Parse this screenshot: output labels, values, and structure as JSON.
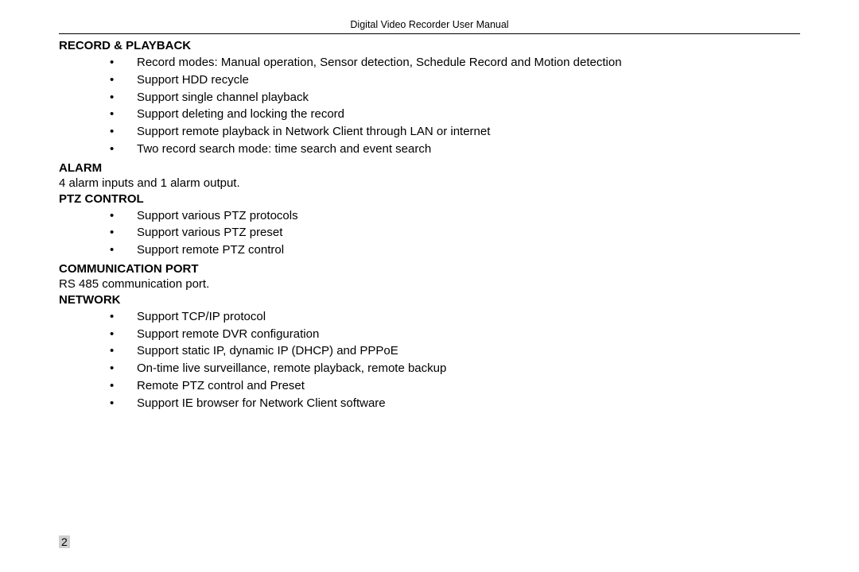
{
  "header": {
    "title": "Digital Video Recorder User Manual"
  },
  "sections": {
    "record_playback": {
      "heading": "RECORD & PLAYBACK",
      "items": [
        "Record modes: Manual operation, Sensor detection, Schedule Record and Motion detection",
        "Support HDD recycle",
        "Support single channel playback",
        "Support deleting and locking the record",
        "Support remote playback in Network Client through LAN or internet",
        "Two record search mode: time search and event search"
      ]
    },
    "alarm": {
      "heading": "ALARM",
      "text": "4 alarm inputs and 1 alarm output."
    },
    "ptz_control": {
      "heading": "PTZ CONTROL",
      "items": [
        "Support various PTZ protocols",
        "Support various PTZ preset",
        "Support remote PTZ control"
      ]
    },
    "communication_port": {
      "heading": "COMMUNICATION PORT",
      "text": "RS 485 communication port."
    },
    "network": {
      "heading": "NETWORK",
      "items": [
        "Support TCP/IP protocol",
        "Support remote DVR configuration",
        "Support static IP, dynamic IP (DHCP) and PPPoE",
        "On-time live surveillance, remote playback, remote backup",
        "Remote PTZ control and Preset",
        "Support IE browser for Network Client software"
      ]
    }
  },
  "page_number": "2"
}
